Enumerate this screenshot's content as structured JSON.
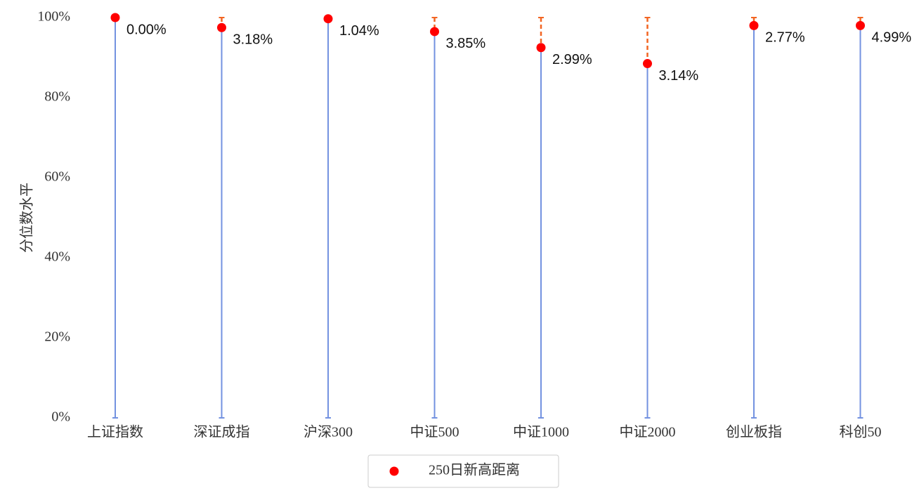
{
  "chart_data": {
    "type": "lollipop",
    "y_label": "分位数水平",
    "categories": [
      "上证指数",
      "深证成指",
      "沪深300",
      "中证500",
      "中证1000",
      "中证2000",
      "创业板指",
      "科创50"
    ],
    "series": [
      {
        "name": "250日新高距离",
        "color": "#ff0000",
        "values": [
          100,
          97.5,
          99.7,
          96.5,
          92.5,
          88.5,
          98,
          98
        ],
        "point_labels": [
          "0.00%",
          "3.18%",
          "1.04%",
          "3.85%",
          "2.99%",
          "3.14%",
          "2.77%",
          "4.99%"
        ]
      }
    ],
    "stem_color": "#7392e0",
    "gap_color": "#f26522",
    "ylim": [
      0,
      100
    ],
    "yticks": [
      {
        "value": 0,
        "label": "0%"
      },
      {
        "value": 20,
        "label": "20%"
      },
      {
        "value": 40,
        "label": "40%"
      },
      {
        "value": 60,
        "label": "60%"
      },
      {
        "value": 80,
        "label": "80%"
      },
      {
        "value": 100,
        "label": "100%"
      }
    ],
    "legend": "bottom"
  }
}
